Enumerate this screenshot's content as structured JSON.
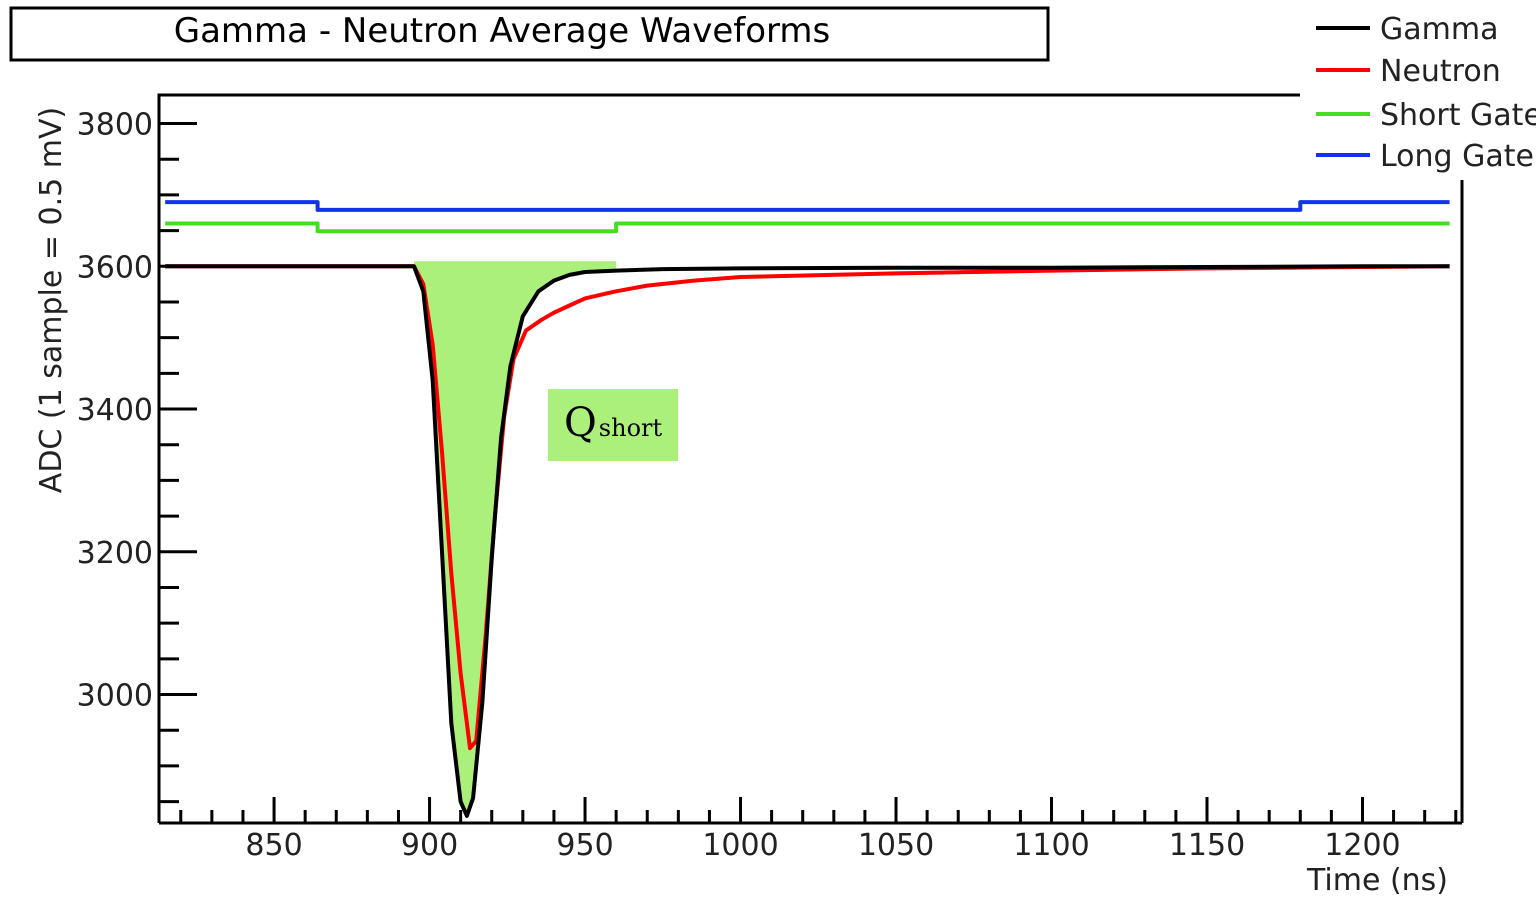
{
  "chart_data": {
    "type": "line",
    "title": "Gamma - Neutron Average Waveforms",
    "xlabel": "Time (ns)",
    "ylabel": "ADC (1 sample = 0.5 mV)",
    "xlim": [
      813,
      1232
    ],
    "ylim": [
      2820,
      3840
    ],
    "xticks": [
      850,
      900,
      950,
      1000,
      1050,
      1100,
      1150,
      1200
    ],
    "yticks": [
      3000,
      3200,
      3400,
      3600,
      3800
    ],
    "legend_position": "top-right",
    "series": [
      {
        "name": "Gamma",
        "color": "#000000",
        "x": [
          815,
          895,
          898,
          901,
          904,
          907,
          910,
          912,
          914,
          917,
          920,
          923,
          926,
          930,
          935,
          940,
          945,
          950,
          960,
          975,
          1000,
          1050,
          1100,
          1150,
          1200,
          1228
        ],
        "y": [
          3600,
          3600,
          3565,
          3440,
          3200,
          2960,
          2850,
          2830,
          2855,
          2990,
          3190,
          3360,
          3460,
          3530,
          3565,
          3580,
          3588,
          3592,
          3594,
          3596,
          3597,
          3598,
          3598,
          3599,
          3600,
          3600
        ]
      },
      {
        "name": "Neutron",
        "color": "#ff0000",
        "x": [
          815,
          895,
          898,
          901,
          904,
          907,
          910,
          913,
          915,
          918,
          921,
          924,
          927,
          931,
          936,
          940,
          945,
          950,
          955,
          960,
          970,
          985,
          1000,
          1050,
          1100,
          1150,
          1200,
          1228
        ],
        "y": [
          3600,
          3600,
          3575,
          3490,
          3340,
          3170,
          3030,
          2925,
          2935,
          3080,
          3250,
          3390,
          3470,
          3510,
          3525,
          3535,
          3545,
          3555,
          3560,
          3565,
          3573,
          3580,
          3585,
          3590,
          3594,
          3597,
          3599,
          3600
        ]
      },
      {
        "name": "Short Gate",
        "color": "#44dd22",
        "x": [
          815,
          864,
          864,
          960,
          960,
          1228
        ],
        "y": [
          3660,
          3660,
          3649,
          3649,
          3660,
          3660
        ]
      },
      {
        "name": "Long Gate",
        "color": "#1133ee",
        "x": [
          815,
          864,
          864,
          1180,
          1180,
          1228
        ],
        "y": [
          3690,
          3690,
          3679,
          3679,
          3690,
          3690
        ]
      }
    ],
    "filled_region": {
      "label_main": "Q",
      "label_sub": "short",
      "x_range": [
        895,
        960
      ],
      "top_y": 3607,
      "color": "#aaf07a"
    }
  }
}
